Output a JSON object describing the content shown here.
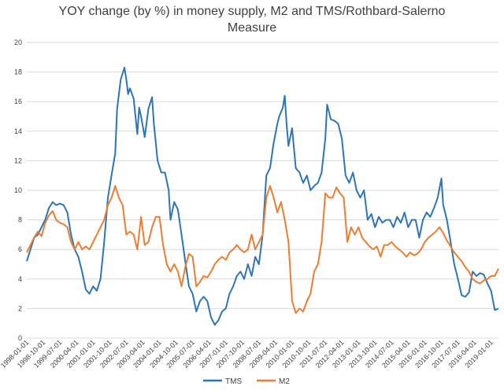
{
  "chart_data": {
    "type": "line",
    "title": "YOY change (by %) in money supply, M2 and TMS/Rothbard-Salerno",
    "title_line2": "Measure",
    "xlabel": "",
    "ylabel": "",
    "ylim": [
      0,
      20
    ],
    "yticks": [
      0,
      2,
      4,
      6,
      8,
      10,
      12,
      14,
      16,
      18,
      20
    ],
    "xlim": [
      "1998-01",
      "2019-05"
    ],
    "xticks": [
      "1998-01-01",
      "1998-10-01",
      "1999-07-01",
      "2000-04-01",
      "2001-01-01",
      "2001-10-01",
      "2002-07-01",
      "2003-04-01",
      "2004-01-01",
      "2004-10-01",
      "2005-07-01",
      "2006-04-01",
      "2007-01-01",
      "2007-10-01",
      "2008-07-01",
      "2009-04-01",
      "2010-01-01",
      "2010-10-01",
      "2011-07-01",
      "2012-04-01",
      "2013-01-01",
      "2013-10-01",
      "2014-07-01",
      "2015-04-01",
      "2016-01-01",
      "2016-10-01",
      "2017-07-01",
      "2018-04-01",
      "2019-01-01"
    ],
    "grid": true,
    "legend": "bottom",
    "series": [
      {
        "name": "TMS",
        "color": "#2e75b6",
        "points": [
          [
            "1998-01",
            5.2
          ],
          [
            "1998-03",
            6.0
          ],
          [
            "1998-05",
            6.8
          ],
          [
            "1998-07",
            7.0
          ],
          [
            "1998-09",
            7.5
          ],
          [
            "1998-11",
            8.0
          ],
          [
            "1999-01",
            8.8
          ],
          [
            "1999-03",
            9.2
          ],
          [
            "1999-05",
            9.0
          ],
          [
            "1999-07",
            9.1
          ],
          [
            "1999-09",
            9.0
          ],
          [
            "1999-11",
            8.5
          ],
          [
            "2000-01",
            7.0
          ],
          [
            "2000-03",
            6.0
          ],
          [
            "2000-05",
            5.5
          ],
          [
            "2000-07",
            4.5
          ],
          [
            "2000-09",
            3.3
          ],
          [
            "2000-11",
            3.0
          ],
          [
            "2001-01",
            3.5
          ],
          [
            "2001-03",
            3.2
          ],
          [
            "2001-05",
            4.0
          ],
          [
            "2001-07",
            6.5
          ],
          [
            "2001-09",
            9.5
          ],
          [
            "2001-11",
            11.0
          ],
          [
            "2002-01",
            12.5
          ],
          [
            "2002-02",
            15.5
          ],
          [
            "2002-03",
            16.5
          ],
          [
            "2002-04",
            17.5
          ],
          [
            "2002-06",
            18.3
          ],
          [
            "2002-07",
            17.5
          ],
          [
            "2002-08",
            16.5
          ],
          [
            "2002-09",
            16.9
          ],
          [
            "2002-11",
            16.2
          ],
          [
            "2003-01",
            13.8
          ],
          [
            "2003-02",
            15.6
          ],
          [
            "2003-03",
            15.0
          ],
          [
            "2003-05",
            13.6
          ],
          [
            "2003-07",
            15.5
          ],
          [
            "2003-09",
            16.3
          ],
          [
            "2003-10",
            14.5
          ],
          [
            "2003-12",
            12.0
          ],
          [
            "2004-02",
            11.2
          ],
          [
            "2004-04",
            11.2
          ],
          [
            "2004-06",
            10.0
          ],
          [
            "2004-07",
            8.0
          ],
          [
            "2004-09",
            9.2
          ],
          [
            "2004-11",
            8.7
          ],
          [
            "2005-01",
            7.0
          ],
          [
            "2005-03",
            5.2
          ],
          [
            "2005-05",
            3.5
          ],
          [
            "2005-07",
            3.0
          ],
          [
            "2005-09",
            1.8
          ],
          [
            "2005-11",
            2.5
          ],
          [
            "2006-01",
            2.8
          ],
          [
            "2006-03",
            2.5
          ],
          [
            "2006-05",
            1.4
          ],
          [
            "2006-07",
            0.9
          ],
          [
            "2006-09",
            1.2
          ],
          [
            "2006-11",
            1.8
          ],
          [
            "2007-01",
            2.0
          ],
          [
            "2007-03",
            3.0
          ],
          [
            "2007-05",
            3.5
          ],
          [
            "2007-07",
            4.2
          ],
          [
            "2007-09",
            4.5
          ],
          [
            "2007-11",
            4.0
          ],
          [
            "2008-01",
            5.0
          ],
          [
            "2008-03",
            4.2
          ],
          [
            "2008-05",
            5.5
          ],
          [
            "2008-07",
            5.0
          ],
          [
            "2008-09",
            7.0
          ],
          [
            "2008-11",
            11.0
          ],
          [
            "2009-01",
            11.5
          ],
          [
            "2009-03",
            13.2
          ],
          [
            "2009-05",
            14.5
          ],
          [
            "2009-06",
            15.0
          ],
          [
            "2009-08",
            15.6
          ],
          [
            "2009-09",
            16.4
          ],
          [
            "2009-10",
            14.5
          ],
          [
            "2009-11",
            13.0
          ],
          [
            "2010-01",
            14.2
          ],
          [
            "2010-03",
            11.5
          ],
          [
            "2010-05",
            11.2
          ],
          [
            "2010-07",
            10.5
          ],
          [
            "2010-09",
            11.0
          ],
          [
            "2010-11",
            10.0
          ],
          [
            "2011-01",
            10.3
          ],
          [
            "2011-03",
            10.5
          ],
          [
            "2011-05",
            11.2
          ],
          [
            "2011-07",
            13.5
          ],
          [
            "2011-08",
            15.8
          ],
          [
            "2011-10",
            14.8
          ],
          [
            "2011-12",
            14.7
          ],
          [
            "2012-02",
            14.5
          ],
          [
            "2012-04",
            13.5
          ],
          [
            "2012-06",
            11.0
          ],
          [
            "2012-08",
            10.5
          ],
          [
            "2012-10",
            11.2
          ],
          [
            "2012-12",
            10.0
          ],
          [
            "2013-02",
            9.5
          ],
          [
            "2013-04",
            10.0
          ],
          [
            "2013-06",
            8.0
          ],
          [
            "2013-08",
            8.4
          ],
          [
            "2013-10",
            7.5
          ],
          [
            "2013-12",
            8.2
          ],
          [
            "2014-02",
            7.8
          ],
          [
            "2014-04",
            8.0
          ],
          [
            "2014-06",
            8.0
          ],
          [
            "2014-08",
            7.5
          ],
          [
            "2014-10",
            8.2
          ],
          [
            "2014-12",
            7.8
          ],
          [
            "2015-02",
            8.5
          ],
          [
            "2015-04",
            7.5
          ],
          [
            "2015-06",
            8.0
          ],
          [
            "2015-08",
            8.0
          ],
          [
            "2015-10",
            6.8
          ],
          [
            "2015-12",
            8.0
          ],
          [
            "2016-02",
            8.5
          ],
          [
            "2016-04",
            8.2
          ],
          [
            "2016-06",
            8.8
          ],
          [
            "2016-08",
            9.5
          ],
          [
            "2016-10",
            10.8
          ],
          [
            "2016-11",
            9.0
          ],
          [
            "2017-01",
            8.0
          ],
          [
            "2017-03",
            6.5
          ],
          [
            "2017-05",
            5.0
          ],
          [
            "2017-07",
            4.0
          ],
          [
            "2017-09",
            2.9
          ],
          [
            "2017-11",
            2.8
          ],
          [
            "2018-01",
            3.1
          ],
          [
            "2018-03",
            4.5
          ],
          [
            "2018-05",
            4.2
          ],
          [
            "2018-07",
            4.4
          ],
          [
            "2018-09",
            4.3
          ],
          [
            "2018-11",
            3.7
          ],
          [
            "2019-01",
            3.2
          ],
          [
            "2019-03",
            1.9
          ],
          [
            "2019-05",
            2.0
          ]
        ]
      },
      {
        "name": "M2",
        "color": "#ed7d31",
        "points": [
          [
            "1998-01",
            5.8
          ],
          [
            "1998-03",
            6.3
          ],
          [
            "1998-05",
            6.8
          ],
          [
            "1998-07",
            7.2
          ],
          [
            "1998-09",
            6.9
          ],
          [
            "1998-11",
            7.8
          ],
          [
            "1999-01",
            8.3
          ],
          [
            "1999-03",
            8.6
          ],
          [
            "1999-05",
            8.0
          ],
          [
            "1999-07",
            7.8
          ],
          [
            "1999-09",
            7.7
          ],
          [
            "1999-11",
            7.5
          ],
          [
            "2000-01",
            6.5
          ],
          [
            "2000-03",
            6.0
          ],
          [
            "2000-05",
            6.5
          ],
          [
            "2000-07",
            6.0
          ],
          [
            "2000-09",
            6.2
          ],
          [
            "2000-11",
            6.0
          ],
          [
            "2001-01",
            6.5
          ],
          [
            "2001-03",
            7.0
          ],
          [
            "2001-05",
            7.5
          ],
          [
            "2001-07",
            8.0
          ],
          [
            "2001-09",
            9.0
          ],
          [
            "2001-11",
            9.5
          ],
          [
            "2002-01",
            10.3
          ],
          [
            "2002-03",
            9.5
          ],
          [
            "2002-05",
            9.0
          ],
          [
            "2002-07",
            7.0
          ],
          [
            "2002-09",
            7.2
          ],
          [
            "2002-11",
            7.0
          ],
          [
            "2003-01",
            6.0
          ],
          [
            "2003-03",
            8.2
          ],
          [
            "2003-05",
            6.3
          ],
          [
            "2003-07",
            6.5
          ],
          [
            "2003-09",
            7.5
          ],
          [
            "2003-11",
            8.2
          ],
          [
            "2004-01",
            8.2
          ],
          [
            "2004-03",
            6.3
          ],
          [
            "2004-05",
            5.0
          ],
          [
            "2004-07",
            4.5
          ],
          [
            "2004-09",
            5.0
          ],
          [
            "2004-11",
            4.5
          ],
          [
            "2005-01",
            3.5
          ],
          [
            "2005-03",
            4.8
          ],
          [
            "2005-05",
            5.7
          ],
          [
            "2005-07",
            5.5
          ],
          [
            "2005-09",
            3.5
          ],
          [
            "2005-11",
            3.8
          ],
          [
            "2006-01",
            4.2
          ],
          [
            "2006-03",
            4.1
          ],
          [
            "2006-05",
            4.5
          ],
          [
            "2006-07",
            5.0
          ],
          [
            "2006-09",
            5.3
          ],
          [
            "2006-11",
            5.5
          ],
          [
            "2007-01",
            5.3
          ],
          [
            "2007-03",
            5.8
          ],
          [
            "2007-05",
            6.0
          ],
          [
            "2007-07",
            6.3
          ],
          [
            "2007-09",
            6.0
          ],
          [
            "2007-11",
            5.8
          ],
          [
            "2008-01",
            6.0
          ],
          [
            "2008-03",
            7.0
          ],
          [
            "2008-05",
            6.0
          ],
          [
            "2008-07",
            6.5
          ],
          [
            "2008-09",
            7.0
          ],
          [
            "2008-11",
            9.5
          ],
          [
            "2009-01",
            10.3
          ],
          [
            "2009-03",
            9.5
          ],
          [
            "2009-05",
            8.5
          ],
          [
            "2009-07",
            9.2
          ],
          [
            "2009-09",
            8.0
          ],
          [
            "2009-11",
            6.5
          ],
          [
            "2010-01",
            2.5
          ],
          [
            "2010-03",
            1.7
          ],
          [
            "2010-05",
            2.0
          ],
          [
            "2010-07",
            1.8
          ],
          [
            "2010-09",
            2.5
          ],
          [
            "2010-11",
            3.0
          ],
          [
            "2011-01",
            4.5
          ],
          [
            "2011-03",
            5.0
          ],
          [
            "2011-05",
            6.5
          ],
          [
            "2011-07",
            9.8
          ],
          [
            "2011-09",
            9.5
          ],
          [
            "2011-11",
            9.5
          ],
          [
            "2012-01",
            10.2
          ],
          [
            "2012-03",
            9.8
          ],
          [
            "2012-05",
            9.5
          ],
          [
            "2012-07",
            6.5
          ],
          [
            "2012-09",
            7.5
          ],
          [
            "2012-11",
            7.0
          ],
          [
            "2013-01",
            7.5
          ],
          [
            "2013-03",
            6.8
          ],
          [
            "2013-05",
            6.5
          ],
          [
            "2013-07",
            6.2
          ],
          [
            "2013-09",
            6.0
          ],
          [
            "2013-11",
            6.2
          ],
          [
            "2014-01",
            5.5
          ],
          [
            "2014-03",
            6.3
          ],
          [
            "2014-05",
            6.3
          ],
          [
            "2014-07",
            6.5
          ],
          [
            "2014-09",
            6.2
          ],
          [
            "2014-11",
            6.0
          ],
          [
            "2015-01",
            5.8
          ],
          [
            "2015-03",
            5.5
          ],
          [
            "2015-05",
            5.8
          ],
          [
            "2015-07",
            5.6
          ],
          [
            "2015-09",
            5.7
          ],
          [
            "2015-11",
            6.0
          ],
          [
            "2016-01",
            6.5
          ],
          [
            "2016-03",
            6.8
          ],
          [
            "2016-05",
            7.0
          ],
          [
            "2016-07",
            7.2
          ],
          [
            "2016-09",
            7.5
          ],
          [
            "2016-11",
            7.1
          ],
          [
            "2017-01",
            6.6
          ],
          [
            "2017-03",
            6.2
          ],
          [
            "2017-05",
            5.8
          ],
          [
            "2017-07",
            5.5
          ],
          [
            "2017-09",
            5.2
          ],
          [
            "2017-11",
            4.8
          ],
          [
            "2018-01",
            4.5
          ],
          [
            "2018-03",
            4.0
          ],
          [
            "2018-05",
            3.8
          ],
          [
            "2018-07",
            3.7
          ],
          [
            "2018-09",
            3.9
          ],
          [
            "2018-11",
            4.0
          ],
          [
            "2019-01",
            4.2
          ],
          [
            "2019-03",
            4.2
          ],
          [
            "2019-05",
            4.7
          ]
        ]
      }
    ]
  }
}
